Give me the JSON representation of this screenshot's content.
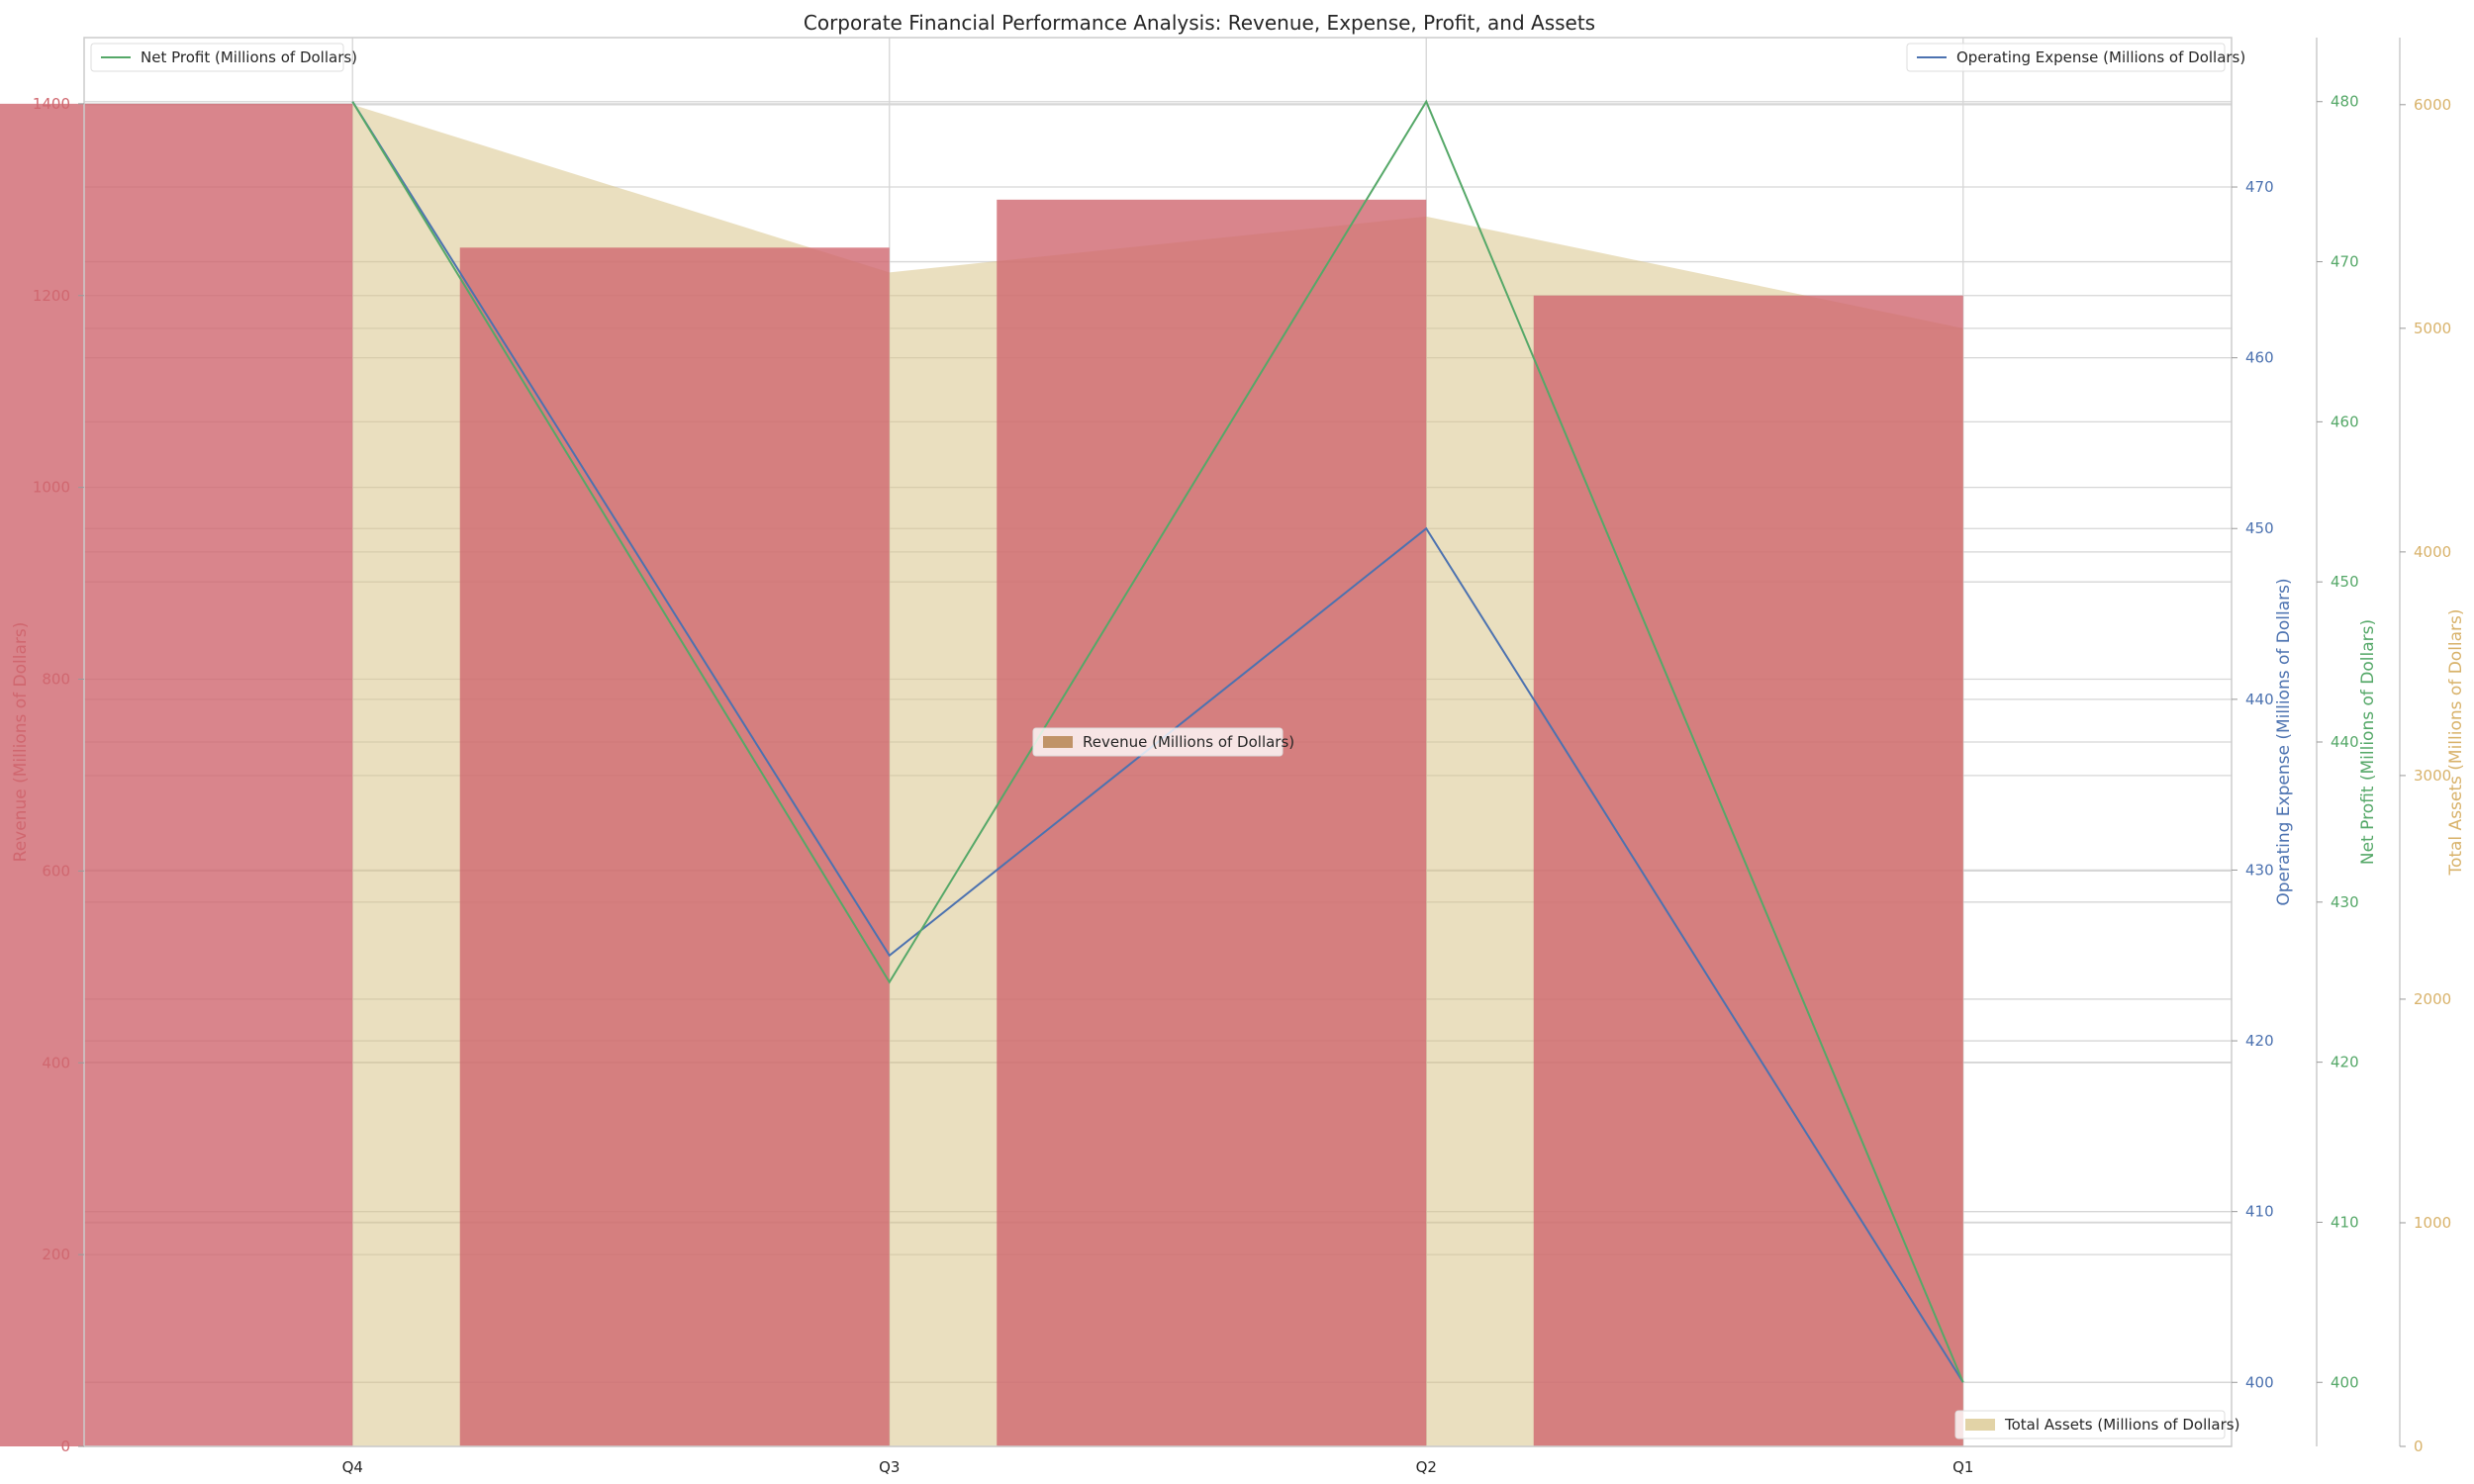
{
  "chart_data": {
    "type": "bar",
    "title": "Corporate Financial Performance Analysis: Revenue, Expense, Profit, and Assets",
    "categories": [
      "Q4",
      "Q3",
      "Q2",
      "Q1"
    ],
    "series": [
      {
        "name": "Revenue (Millions of Dollars)",
        "kind": "bar",
        "axis": "left",
        "values": [
          1400,
          1250,
          1300,
          1200
        ],
        "color": "#d0676f"
      },
      {
        "name": "Operating Expense (Millions of Dollars)",
        "kind": "line",
        "axis": "right-1",
        "values": [
          475,
          425,
          450,
          400
        ],
        "color": "#4c72b0"
      },
      {
        "name": "Net Profit (Millions of Dollars)",
        "kind": "line",
        "axis": "right-2",
        "values": [
          480,
          425,
          480,
          400
        ],
        "color": "#55a868"
      },
      {
        "name": "Total Assets (Millions of Dollars)",
        "kind": "area",
        "axis": "right-3",
        "values": [
          6000,
          5250,
          5500,
          5000
        ],
        "color": "#d8c48a"
      }
    ],
    "axes": {
      "left": {
        "label": "Revenue (Millions of Dollars)",
        "min": 0,
        "max": 1469,
        "ticks": [
          0,
          200,
          400,
          600,
          800,
          1000,
          1200,
          1400
        ],
        "color": "#d0676f"
      },
      "right-1": {
        "label": "Operating Expense (Millions of Dollars)",
        "min": 396.25,
        "max": 478.75,
        "ticks": [
          400,
          410,
          420,
          430,
          440,
          450,
          460,
          470
        ],
        "color": "#4c72b0"
      },
      "right-2": {
        "label": "Net Profit (Millions of Dollars)",
        "min": 396,
        "max": 484,
        "ticks": [
          400,
          410,
          420,
          430,
          440,
          450,
          460,
          470,
          480
        ],
        "color": "#55a868"
      },
      "right-3": {
        "label": "Total Assets (Millions of Dollars)",
        "min": 0,
        "max": 6300,
        "ticks": [
          0,
          1000,
          2000,
          3000,
          4000,
          5000,
          6000
        ],
        "color": "#d8b26a"
      }
    },
    "grid": true,
    "legends": {
      "top-left": "Net Profit (Millions of Dollars)",
      "top-right": "Operating Expense (Millions of Dollars)",
      "center": "Revenue (Millions of Dollars)",
      "bottom-right": "Total Assets (Millions of Dollars)"
    }
  }
}
